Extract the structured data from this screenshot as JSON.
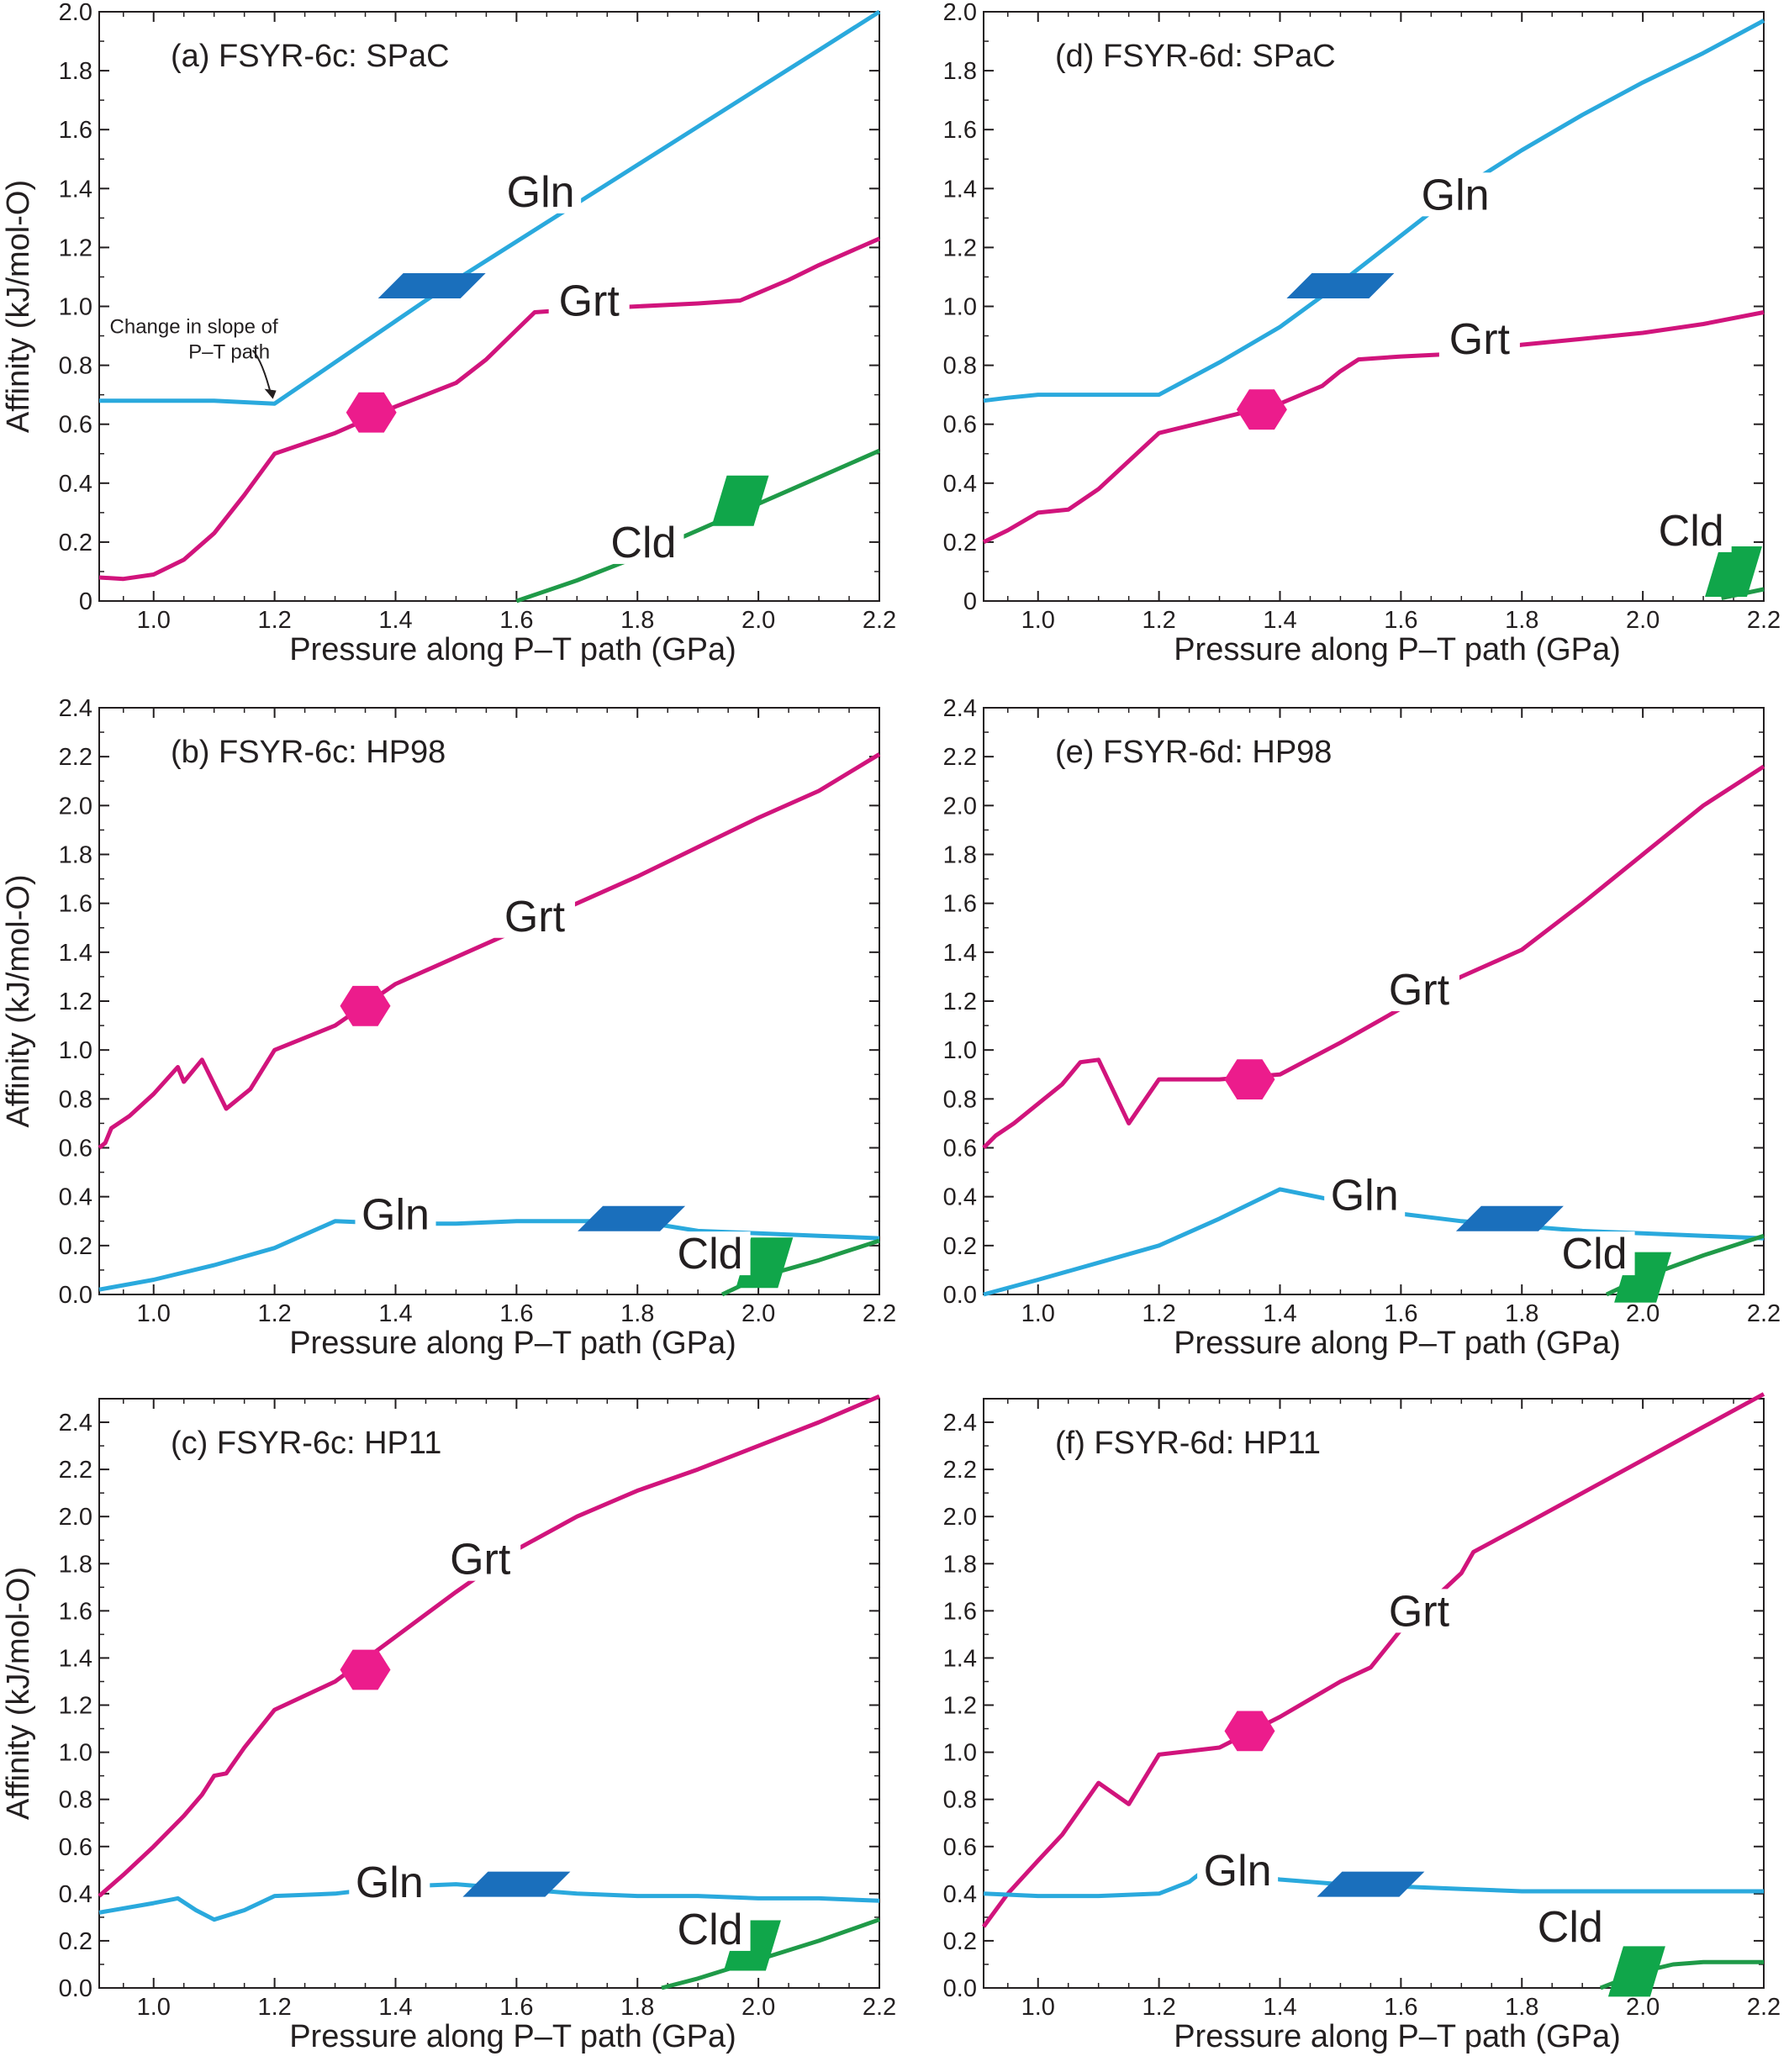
{
  "figure": {
    "colors": {
      "Gln": "#2aa9dd",
      "Grt": "#d1147c",
      "Cld": "#1f9a48",
      "grt_marker": "#ec1c8c",
      "gln_marker": "#1a6fbc",
      "cld_marker": "#10a64a",
      "axis": "#231f20"
    }
  },
  "chart_data": [
    {
      "id": "a",
      "type": "line",
      "title": "(a) FSYR-6c: SPaC",
      "xlabel": "Pressure along P–T path (GPa)",
      "ylabel": "Affinity (kJ/mol-O)",
      "xlim": [
        0.91,
        2.2
      ],
      "ylim": [
        0,
        2.0
      ],
      "xticks": [
        "1.0",
        "1.2",
        "1.4",
        "1.6",
        "1.8",
        "2.0",
        "2.2"
      ],
      "yticks": [
        "0",
        "0.2",
        "0.4",
        "0.6",
        "0.8",
        "1.0",
        "1.2",
        "1.4",
        "1.6",
        "1.8",
        "2.0"
      ],
      "grid": false,
      "annotations": [
        {
          "text": [
            "Change in slope of",
            "P–T path"
          ],
          "at": [
            1.2,
            0.68
          ]
        }
      ],
      "series": [
        {
          "name": "Gln",
          "label": "Gln",
          "label_at": [
            1.64,
            1.35
          ],
          "marker": "parallelogram",
          "marker_at": [
            1.46,
            1.07
          ],
          "x": [
            0.91,
            1.0,
            1.1,
            1.2,
            1.3,
            1.4,
            1.5,
            1.6,
            1.7,
            1.8,
            1.9,
            2.0,
            2.1,
            2.2
          ],
          "y": [
            0.68,
            0.68,
            0.68,
            0.67,
            0.81,
            0.95,
            1.09,
            1.22,
            1.35,
            1.48,
            1.61,
            1.74,
            1.87,
            2.0
          ]
        },
        {
          "name": "Grt",
          "label": "Grt",
          "label_at": [
            1.72,
            0.98
          ],
          "marker": "hexagon",
          "marker_at": [
            1.36,
            0.64
          ],
          "x": [
            0.91,
            0.95,
            1.0,
            1.05,
            1.1,
            1.15,
            1.2,
            1.3,
            1.4,
            1.5,
            1.55,
            1.6,
            1.63,
            1.7,
            1.8,
            1.9,
            1.97,
            2.05,
            2.1,
            2.2
          ],
          "y": [
            0.08,
            0.075,
            0.09,
            0.14,
            0.23,
            0.36,
            0.5,
            0.57,
            0.66,
            0.74,
            0.82,
            0.92,
            0.98,
            0.99,
            1.0,
            1.01,
            1.02,
            1.09,
            1.14,
            1.23
          ]
        },
        {
          "name": "Cld",
          "label": "Cld",
          "label_at": [
            1.81,
            0.16
          ],
          "marker": "parallelogram",
          "marker_at": [
            1.97,
            0.34
          ],
          "x": [
            1.6,
            1.7,
            1.8,
            1.9,
            2.0,
            2.1,
            2.2
          ],
          "y": [
            0.0,
            0.07,
            0.15,
            0.24,
            0.33,
            0.42,
            0.51
          ]
        }
      ]
    },
    {
      "id": "d",
      "type": "line",
      "title": "(d) FSYR-6d: SPaC",
      "xlabel": "Pressure along P–T path (GPa)",
      "ylabel": "",
      "xlim": [
        0.91,
        2.2
      ],
      "ylim": [
        0,
        2.0
      ],
      "xticks": [
        "1.0",
        "1.2",
        "1.4",
        "1.6",
        "1.8",
        "2.0",
        "2.2"
      ],
      "yticks": [
        "0",
        "0.2",
        "0.4",
        "0.6",
        "0.8",
        "1.0",
        "1.2",
        "1.4",
        "1.6",
        "1.8",
        "2.0"
      ],
      "grid": false,
      "series": [
        {
          "name": "Gln",
          "label": "Gln",
          "label_at": [
            1.69,
            1.34
          ],
          "marker": "parallelogram",
          "marker_at": [
            1.5,
            1.07
          ],
          "x": [
            0.91,
            0.95,
            1.0,
            1.1,
            1.2,
            1.3,
            1.4,
            1.5,
            1.6,
            1.7,
            1.8,
            1.9,
            2.0,
            2.1,
            2.2
          ],
          "y": [
            0.68,
            0.69,
            0.7,
            0.7,
            0.7,
            0.81,
            0.93,
            1.08,
            1.24,
            1.4,
            1.53,
            1.65,
            1.76,
            1.86,
            1.97
          ]
        },
        {
          "name": "Grt",
          "label": "Grt",
          "label_at": [
            1.73,
            0.85
          ],
          "marker": "hexagon",
          "marker_at": [
            1.37,
            0.65
          ],
          "x": [
            0.91,
            0.95,
            1.0,
            1.05,
            1.1,
            1.2,
            1.3,
            1.4,
            1.47,
            1.5,
            1.53,
            1.6,
            1.7,
            1.8,
            1.9,
            2.0,
            2.1,
            2.2
          ],
          "y": [
            0.2,
            0.24,
            0.3,
            0.31,
            0.38,
            0.57,
            0.62,
            0.67,
            0.73,
            0.78,
            0.82,
            0.83,
            0.84,
            0.87,
            0.89,
            0.91,
            0.94,
            0.98
          ]
        },
        {
          "name": "Cld",
          "label": "Cld",
          "label_at": [
            2.08,
            0.2
          ],
          "marker": "parallelogram",
          "marker_at": [
            2.15,
            0.1
          ],
          "x": [
            2.13,
            2.2
          ],
          "y": [
            0.01,
            0.04
          ]
        }
      ]
    },
    {
      "id": "b",
      "type": "line",
      "title": "(b) FSYR-6c: HP98",
      "xlabel": "Pressure along P–T path (GPa)",
      "ylabel": "Affinity (kJ/mol-O)",
      "xlim": [
        0.91,
        2.2
      ],
      "ylim": [
        0,
        2.4
      ],
      "xticks": [
        "1.0",
        "1.2",
        "1.4",
        "1.6",
        "1.8",
        "2.0",
        "2.2"
      ],
      "yticks": [
        "0.0",
        "0.2",
        "0.4",
        "0.6",
        "0.8",
        "1.0",
        "1.2",
        "1.4",
        "1.6",
        "1.8",
        "2.0",
        "2.2",
        "2.4"
      ],
      "grid": false,
      "series": [
        {
          "name": "Grt",
          "label": "Grt",
          "label_at": [
            1.63,
            1.5
          ],
          "marker": "hexagon",
          "marker_at": [
            1.35,
            1.18
          ],
          "x": [
            0.91,
            0.92,
            0.93,
            0.96,
            1.0,
            1.04,
            1.05,
            1.08,
            1.12,
            1.16,
            1.2,
            1.3,
            1.4,
            1.5,
            1.6,
            1.7,
            1.8,
            1.9,
            2.0,
            2.1,
            2.2
          ],
          "y": [
            0.6,
            0.62,
            0.68,
            0.73,
            0.82,
            0.93,
            0.87,
            0.96,
            0.76,
            0.84,
            1.0,
            1.1,
            1.27,
            1.38,
            1.49,
            1.6,
            1.71,
            1.83,
            1.95,
            2.06,
            2.21
          ]
        },
        {
          "name": "Gln",
          "label": "Gln",
          "label_at": [
            1.4,
            0.28
          ],
          "marker": "parallelogram",
          "marker_at": [
            1.79,
            0.31
          ],
          "x": [
            0.91,
            1.0,
            1.1,
            1.2,
            1.3,
            1.4,
            1.5,
            1.6,
            1.7,
            1.8,
            1.9,
            2.0,
            2.1,
            2.2
          ],
          "y": [
            0.02,
            0.06,
            0.12,
            0.19,
            0.3,
            0.29,
            0.29,
            0.3,
            0.3,
            0.3,
            0.26,
            0.25,
            0.24,
            0.23
          ]
        },
        {
          "name": "Cld",
          "label": "Cld",
          "label_at": [
            1.92,
            0.12
          ],
          "marker": "parallelogram",
          "marker_at": [
            2.01,
            0.13
          ],
          "x": [
            1.94,
            2.0,
            2.1,
            2.2
          ],
          "y": [
            0.0,
            0.07,
            0.14,
            0.22
          ]
        }
      ]
    },
    {
      "id": "e",
      "type": "line",
      "title": "(e) FSYR-6d: HP98",
      "xlabel": "Pressure along P–T path (GPa)",
      "ylabel": "",
      "xlim": [
        0.91,
        2.2
      ],
      "ylim": [
        0,
        2.4
      ],
      "xticks": [
        "1.0",
        "1.2",
        "1.4",
        "1.6",
        "1.8",
        "2.0",
        "2.2"
      ],
      "yticks": [
        "0.0",
        "0.2",
        "0.4",
        "0.6",
        "0.8",
        "1.0",
        "1.2",
        "1.4",
        "1.6",
        "1.8",
        "2.0",
        "2.2",
        "2.4"
      ],
      "grid": false,
      "series": [
        {
          "name": "Grt",
          "label": "Grt",
          "label_at": [
            1.63,
            1.2
          ],
          "marker": "hexagon",
          "marker_at": [
            1.35,
            0.88
          ],
          "x": [
            0.91,
            0.93,
            0.96,
            1.0,
            1.04,
            1.07,
            1.1,
            1.15,
            1.2,
            1.3,
            1.4,
            1.5,
            1.6,
            1.7,
            1.8,
            1.9,
            2.0,
            2.1,
            2.2
          ],
          "y": [
            0.6,
            0.65,
            0.7,
            0.78,
            0.86,
            0.95,
            0.96,
            0.7,
            0.88,
            0.88,
            0.9,
            1.03,
            1.17,
            1.3,
            1.41,
            1.6,
            1.8,
            2.0,
            2.16
          ]
        },
        {
          "name": "Gln",
          "label": "Gln",
          "label_at": [
            1.54,
            0.36
          ],
          "marker": "parallelogram",
          "marker_at": [
            1.78,
            0.31
          ],
          "x": [
            0.91,
            1.0,
            1.1,
            1.2,
            1.3,
            1.4,
            1.5,
            1.6,
            1.7,
            1.8,
            1.9,
            2.0,
            2.1,
            2.2
          ],
          "y": [
            0.0,
            0.06,
            0.13,
            0.2,
            0.31,
            0.43,
            0.38,
            0.33,
            0.3,
            0.28,
            0.26,
            0.25,
            0.24,
            0.23
          ]
        },
        {
          "name": "Cld",
          "label": "Cld",
          "label_at": [
            1.92,
            0.12
          ],
          "marker": "parallelogram",
          "marker_at": [
            2.0,
            0.07
          ],
          "x": [
            1.94,
            2.0,
            2.1,
            2.2
          ],
          "y": [
            0.0,
            0.07,
            0.16,
            0.24
          ]
        }
      ]
    },
    {
      "id": "c",
      "type": "line",
      "title": "(c) FSYR-6c: HP11",
      "xlabel": "Pressure along P–T path (GPa)",
      "ylabel": "Affinity (kJ/mol-O)",
      "xlim": [
        0.91,
        2.2
      ],
      "ylim": [
        0,
        2.5
      ],
      "xticks": [
        "1.0",
        "1.2",
        "1.4",
        "1.6",
        "1.8",
        "2.0",
        "2.2"
      ],
      "yticks": [
        "0.0",
        "0.2",
        "0.4",
        "0.6",
        "0.8",
        "1.0",
        "1.2",
        "1.4",
        "1.6",
        "1.8",
        "2.0",
        "2.2",
        "2.4"
      ],
      "grid": false,
      "series": [
        {
          "name": "Grt",
          "label": "Grt",
          "label_at": [
            1.54,
            1.77
          ],
          "marker": "hexagon",
          "marker_at": [
            1.35,
            1.35
          ],
          "x": [
            0.91,
            0.95,
            1.0,
            1.05,
            1.08,
            1.1,
            1.12,
            1.15,
            1.2,
            1.3,
            1.4,
            1.5,
            1.6,
            1.7,
            1.8,
            1.9,
            2.0,
            2.1,
            2.2
          ],
          "y": [
            0.39,
            0.48,
            0.6,
            0.73,
            0.82,
            0.9,
            0.91,
            1.02,
            1.18,
            1.3,
            1.49,
            1.68,
            1.86,
            2.0,
            2.11,
            2.2,
            2.3,
            2.4,
            2.51
          ]
        },
        {
          "name": "Gln",
          "label": "Gln",
          "label_at": [
            1.39,
            0.4
          ],
          "marker": "parallelogram",
          "marker_at": [
            1.6,
            0.44
          ],
          "x": [
            0.91,
            1.0,
            1.04,
            1.07,
            1.1,
            1.15,
            1.2,
            1.3,
            1.4,
            1.5,
            1.6,
            1.7,
            1.8,
            1.9,
            2.0,
            2.1,
            2.2
          ],
          "y": [
            0.32,
            0.36,
            0.38,
            0.33,
            0.29,
            0.33,
            0.39,
            0.4,
            0.43,
            0.44,
            0.42,
            0.4,
            0.39,
            0.39,
            0.38,
            0.38,
            0.37
          ]
        },
        {
          "name": "Cld",
          "label": "Cld",
          "label_at": [
            1.92,
            0.2
          ],
          "marker": "parallelogram",
          "marker_at": [
            1.99,
            0.18
          ],
          "x": [
            1.84,
            1.9,
            2.0,
            2.1,
            2.2
          ],
          "y": [
            0.0,
            0.04,
            0.12,
            0.2,
            0.29
          ]
        }
      ]
    },
    {
      "id": "f",
      "type": "line",
      "title": "(f) FSYR-6d: HP11",
      "xlabel": "Pressure along P–T path (GPa)",
      "ylabel": "",
      "xlim": [
        0.91,
        2.2
      ],
      "ylim": [
        0,
        2.5
      ],
      "xticks": [
        "1.0",
        "1.2",
        "1.4",
        "1.6",
        "1.8",
        "2.0",
        "2.2"
      ],
      "yticks": [
        "0.0",
        "0.2",
        "0.4",
        "0.6",
        "0.8",
        "1.0",
        "1.2",
        "1.4",
        "1.6",
        "1.8",
        "2.0",
        "2.2",
        "2.4"
      ],
      "grid": false,
      "series": [
        {
          "name": "Grt",
          "label": "Grt",
          "label_at": [
            1.63,
            1.55
          ],
          "marker": "hexagon",
          "marker_at": [
            1.35,
            1.09
          ],
          "x": [
            0.91,
            0.95,
            1.0,
            1.04,
            1.1,
            1.15,
            1.2,
            1.3,
            1.4,
            1.5,
            1.55,
            1.6,
            1.7,
            1.72,
            1.8,
            1.9,
            2.0,
            2.1,
            2.2
          ],
          "y": [
            0.26,
            0.4,
            0.54,
            0.65,
            0.87,
            0.78,
            0.99,
            1.02,
            1.15,
            1.3,
            1.36,
            1.52,
            1.76,
            1.85,
            1.96,
            2.1,
            2.24,
            2.38,
            2.52
          ]
        },
        {
          "name": "Gln",
          "label": "Gln",
          "label_at": [
            1.33,
            0.45
          ],
          "marker": "parallelogram",
          "marker_at": [
            1.55,
            0.44
          ],
          "x": [
            0.91,
            1.0,
            1.1,
            1.2,
            1.25,
            1.28,
            1.3,
            1.4,
            1.5,
            1.6,
            1.7,
            1.8,
            1.9,
            2.0,
            2.1,
            2.2
          ],
          "y": [
            0.4,
            0.39,
            0.39,
            0.4,
            0.45,
            0.51,
            0.49,
            0.46,
            0.44,
            0.43,
            0.42,
            0.41,
            0.41,
            0.41,
            0.41,
            0.41
          ]
        },
        {
          "name": "Cld",
          "label": "Cld",
          "label_at": [
            1.88,
            0.21
          ],
          "marker": "parallelogram",
          "marker_at": [
            1.99,
            0.07
          ],
          "x": [
            1.93,
            2.0,
            2.05,
            2.1,
            2.2
          ],
          "y": [
            0.0,
            0.07,
            0.1,
            0.11,
            0.11
          ]
        }
      ]
    }
  ]
}
